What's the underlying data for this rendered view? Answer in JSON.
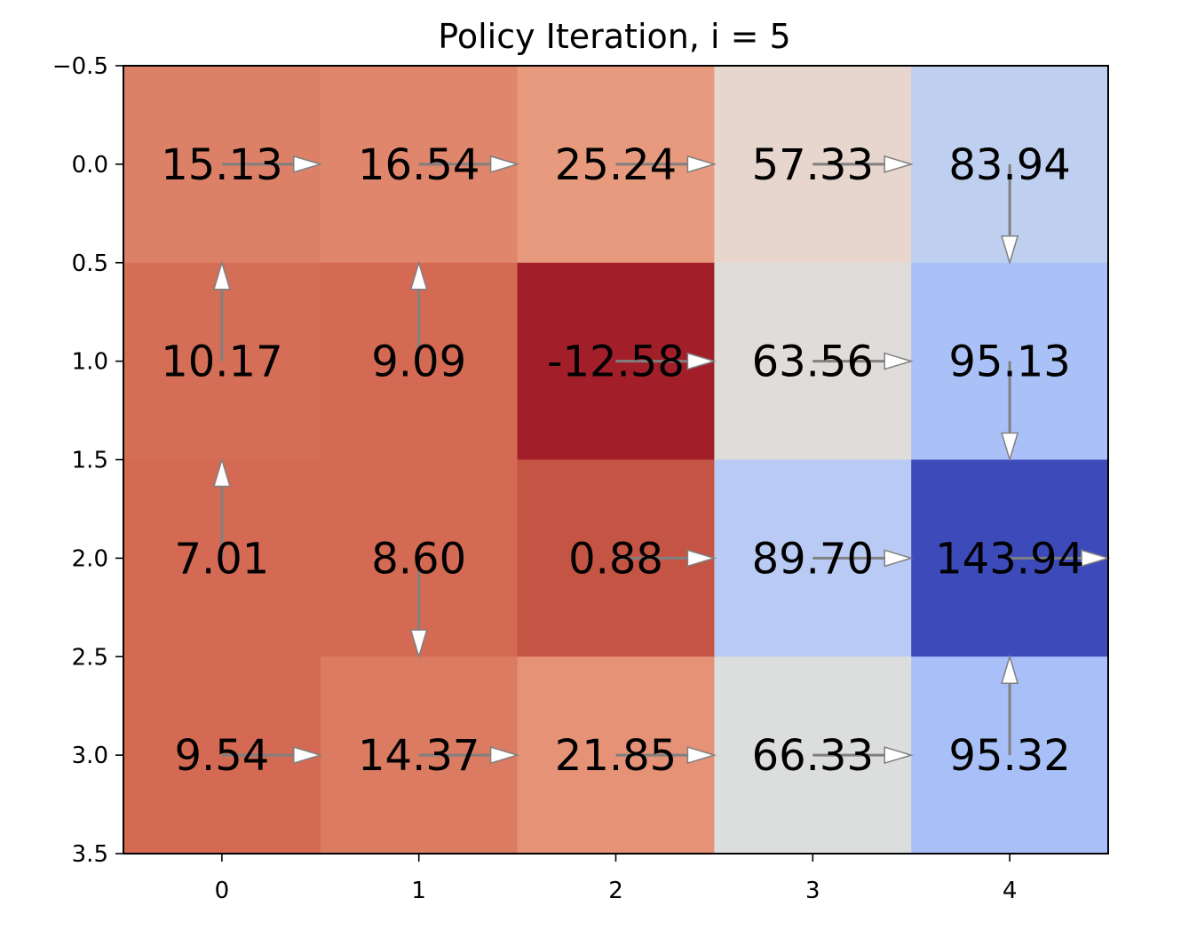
{
  "chart_data": {
    "type": "heatmap",
    "title": "Policy Iteration, i = 5",
    "xlabel": "",
    "ylabel": "",
    "colormap": "coolwarm_r",
    "x_categories": [
      "0",
      "1",
      "2",
      "3",
      "4"
    ],
    "xlim": [
      -0.5,
      4.5
    ],
    "ylim": [
      3.5,
      -0.5
    ],
    "y_ticks": [
      {
        "value": -0.5,
        "label": "−0.5"
      },
      {
        "value": 0.0,
        "label": "0.0"
      },
      {
        "value": 0.5,
        "label": "0.5"
      },
      {
        "value": 1.0,
        "label": "1.0"
      },
      {
        "value": 1.5,
        "label": "1.5"
      },
      {
        "value": 2.0,
        "label": "2.0"
      },
      {
        "value": 2.5,
        "label": "2.5"
      },
      {
        "value": 3.0,
        "label": "3.0"
      },
      {
        "value": 3.5,
        "label": "3.5"
      }
    ],
    "values": [
      [
        15.13,
        16.54,
        25.24,
        57.33,
        83.94
      ],
      [
        10.17,
        9.09,
        -12.58,
        63.56,
        95.13
      ],
      [
        7.01,
        8.6,
        0.88,
        89.7,
        143.94
      ],
      [
        9.54,
        14.37,
        21.85,
        66.33,
        95.32
      ]
    ],
    "labels": [
      [
        "15.13",
        "16.54",
        "25.24",
        "57.33",
        "83.94"
      ],
      [
        "10.17",
        "9.09",
        "-12.58",
        "63.56",
        "95.13"
      ],
      [
        "7.01",
        "8.60",
        "0.88",
        "89.70",
        "143.94"
      ],
      [
        "9.54",
        "14.37",
        "21.85",
        "66.33",
        "95.32"
      ]
    ],
    "policy_arrows": [
      [
        "right",
        "right",
        "right",
        "right",
        "down"
      ],
      [
        "up",
        "up",
        "right",
        "right",
        "down"
      ],
      [
        "up",
        "down",
        "right",
        "right",
        "right"
      ],
      [
        "right",
        "right",
        "right",
        "right",
        "up"
      ]
    ],
    "cell_colors": [
      [
        "#dd8068",
        "#e0866c",
        "#e89a7e",
        "#e7d6cd",
        "#bfcff0"
      ],
      [
        "#d56e56",
        "#d46a53",
        "#a21f2a",
        "#e0dcda",
        "#a9c1f6"
      ],
      [
        "#d46a53",
        "#d46a53",
        "#c45444",
        "#b9cbf5",
        "#3c4bb9"
      ],
      [
        "#d46a53",
        "#db7b62",
        "#e59277",
        "#dcdddd",
        "#a8c0f7"
      ]
    ],
    "arrow_color": "#808080",
    "arrow_head_fill": "#ffffff",
    "grid": false
  }
}
